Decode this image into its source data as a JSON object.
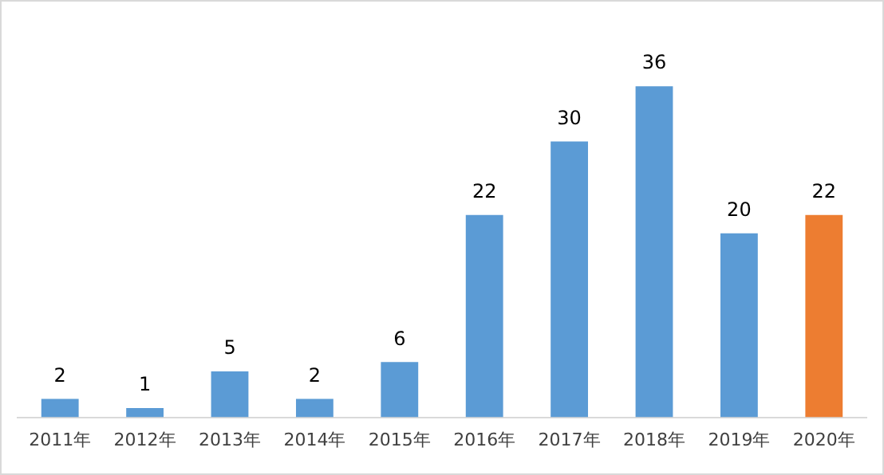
{
  "chart_data": {
    "type": "bar",
    "categories": [
      "2011年",
      "2012年",
      "2013年",
      "2014年",
      "2015年",
      "2016年",
      "2017年",
      "2018年",
      "2019年",
      "2020年"
    ],
    "values": [
      2,
      1,
      5,
      2,
      6,
      22,
      30,
      36,
      20,
      22
    ],
    "colors": [
      "#5b9bd5",
      "#5b9bd5",
      "#5b9bd5",
      "#5b9bd5",
      "#5b9bd5",
      "#5b9bd5",
      "#5b9bd5",
      "#5b9bd5",
      "#5b9bd5",
      "#ed7d31"
    ],
    "data_labels": true,
    "grid": false,
    "legend": false,
    "tick_labels": "x"
  }
}
